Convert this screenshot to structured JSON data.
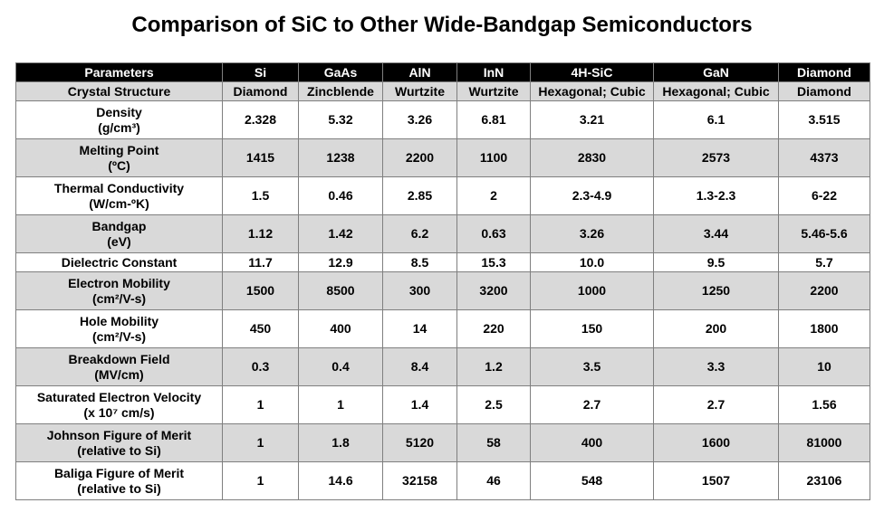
{
  "title": "Comparison of SiC to Other Wide-Bandgap Semiconductors",
  "table": {
    "headers": [
      "Parameters",
      "Si",
      "GaAs",
      "AlN",
      "InN",
      "4H-SiC",
      "GaN",
      "Diamond"
    ],
    "rows": [
      {
        "label": [
          "Crystal Structure"
        ],
        "cells": [
          "Diamond",
          "Zincblende",
          "Wurtzite",
          "Wurtzite",
          "Hexagonal; Cubic",
          "Hexagonal; Cubic",
          "Diamond"
        ]
      },
      {
        "label": [
          "Density",
          "(g/cm³)"
        ],
        "cells": [
          "2.328",
          "5.32",
          "3.26",
          "6.81",
          "3.21",
          "6.1",
          "3.515"
        ]
      },
      {
        "label": [
          "Melting Point",
          "(ºC)"
        ],
        "cells": [
          "1415",
          "1238",
          "2200",
          "1100",
          "2830",
          "2573",
          "4373"
        ]
      },
      {
        "label": [
          "Thermal Conductivity",
          "(W/cm-ºK)"
        ],
        "cells": [
          "1.5",
          "0.46",
          "2.85",
          "2",
          "2.3-4.9",
          "1.3-2.3",
          "6-22"
        ]
      },
      {
        "label": [
          "Bandgap",
          "(eV)"
        ],
        "cells": [
          "1.12",
          "1.42",
          "6.2",
          "0.63",
          "3.26",
          "3.44",
          "5.46-5.6"
        ]
      },
      {
        "label": [
          "Dielectric Constant"
        ],
        "cells": [
          "11.7",
          "12.9",
          "8.5",
          "15.3",
          "10.0",
          "9.5",
          "5.7"
        ]
      },
      {
        "label": [
          "Electron Mobility",
          "(cm²/V-s)"
        ],
        "cells": [
          "1500",
          "8500",
          "300",
          "3200",
          "1000",
          "1250",
          "2200"
        ]
      },
      {
        "label": [
          "Hole Mobility",
          "(cm²/V-s)"
        ],
        "cells": [
          "450",
          "400",
          "14",
          "220",
          "150",
          "200",
          "1800"
        ]
      },
      {
        "label": [
          "Breakdown Field",
          "(MV/cm)"
        ],
        "cells": [
          "0.3",
          "0.4",
          "8.4",
          "1.2",
          "3.5",
          "3.3",
          "10"
        ]
      },
      {
        "label": [
          "Saturated Electron Velocity",
          "(x 10⁷ cm/s)"
        ],
        "cells": [
          "1",
          "1",
          "1.4",
          "2.5",
          "2.7",
          "2.7",
          "1.56"
        ]
      },
      {
        "label": [
          "Johnson Figure of Merit",
          "(relative to Si)"
        ],
        "cells": [
          "1",
          "1.8",
          "5120",
          "58",
          "400",
          "1600",
          "81000"
        ]
      },
      {
        "label": [
          "Baliga Figure of Merit",
          "(relative to Si)"
        ],
        "cells": [
          "1",
          "14.6",
          "32158",
          "46",
          "548",
          "1507",
          "23106"
        ]
      }
    ]
  }
}
